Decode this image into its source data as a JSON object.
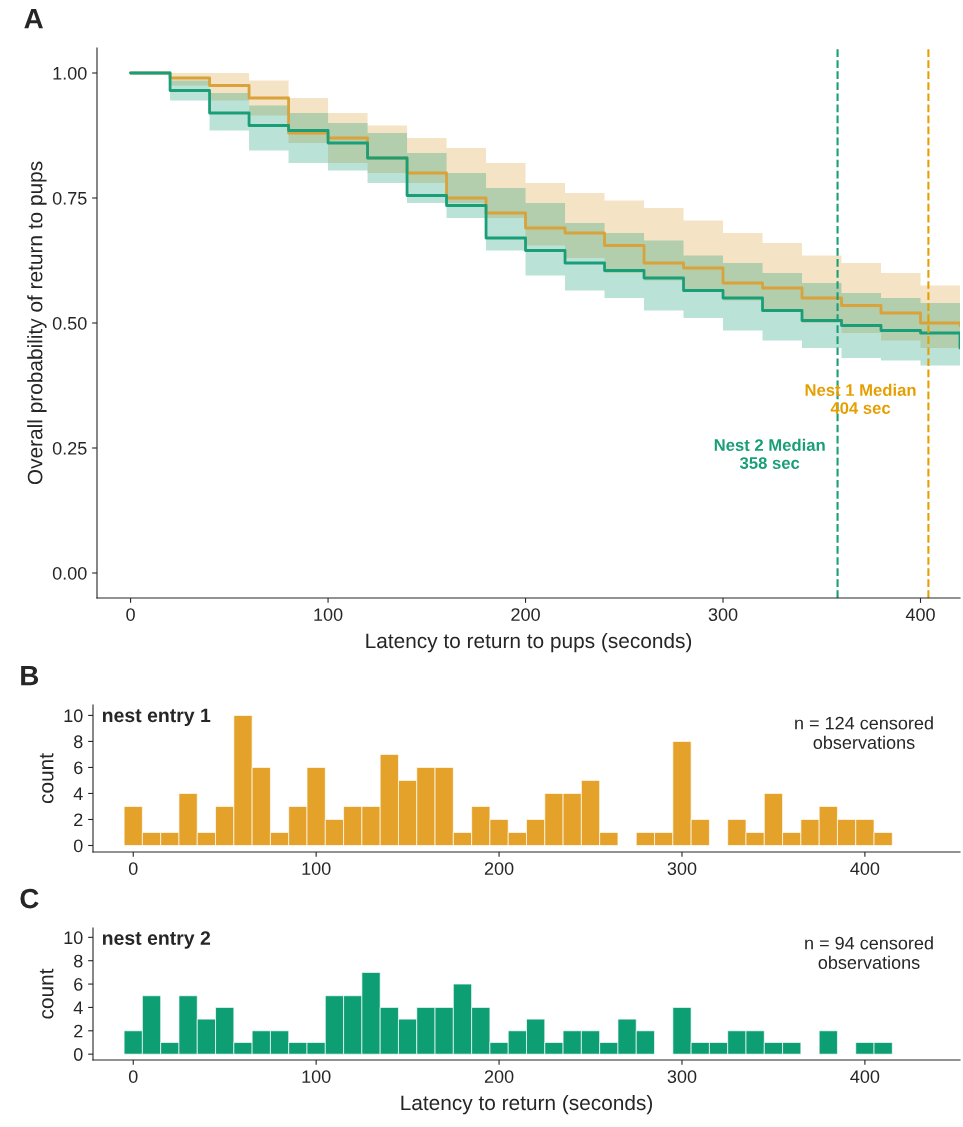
{
  "chart_data": [
    {
      "type": "step",
      "xlabel": "Latency to return to pups (seconds)",
      "ylabel": "Overall probability of return to pups",
      "xlim": [
        -17,
        420
      ],
      "ylim": [
        -0.05,
        1.05
      ],
      "xticks": [
        0,
        100,
        200,
        300,
        400
      ],
      "yticks": [
        {
          "value": 0,
          "label": "0.00"
        },
        {
          "value": 0.25,
          "label": "0.25"
        },
        {
          "value": 0.5,
          "label": "0.50"
        },
        {
          "value": 0.75,
          "label": "0.75"
        },
        {
          "value": 1,
          "label": "1.00"
        }
      ],
      "grid": false,
      "legend": false,
      "series": [
        {
          "color": "#d9a23a",
          "x": [
            0,
            20,
            40,
            60,
            80,
            100,
            120,
            140,
            160,
            180,
            200,
            220,
            240,
            260,
            280,
            300,
            320,
            340,
            360,
            380,
            400,
            420
          ],
          "values": [
            1.0,
            0.99,
            0.975,
            0.95,
            0.88,
            0.87,
            0.83,
            0.8,
            0.75,
            0.72,
            0.69,
            0.68,
            0.655,
            0.62,
            0.61,
            0.58,
            0.57,
            0.55,
            0.535,
            0.52,
            0.5,
            0.495
          ],
          "lower": [
            1.0,
            0.975,
            0.945,
            0.915,
            0.86,
            0.82,
            0.8,
            0.78,
            0.74,
            0.71,
            0.655,
            0.63,
            0.6,
            0.585,
            0.565,
            0.545,
            0.525,
            0.5,
            0.48,
            0.465,
            0.45,
            0.44
          ],
          "upper": [
            1.0,
            1.0,
            1.0,
            0.985,
            0.95,
            0.92,
            0.895,
            0.87,
            0.85,
            0.82,
            0.78,
            0.76,
            0.745,
            0.73,
            0.705,
            0.68,
            0.66,
            0.635,
            0.62,
            0.6,
            0.575,
            0.565
          ]
        },
        {
          "color": "#1a9e78",
          "x": [
            0,
            20,
            40,
            60,
            80,
            100,
            120,
            140,
            160,
            180,
            200,
            220,
            240,
            260,
            280,
            300,
            320,
            340,
            360,
            380,
            400,
            420
          ],
          "values": [
            1.0,
            0.965,
            0.92,
            0.895,
            0.885,
            0.86,
            0.83,
            0.755,
            0.735,
            0.67,
            0.645,
            0.62,
            0.605,
            0.59,
            0.565,
            0.55,
            0.525,
            0.505,
            0.495,
            0.485,
            0.48,
            0.45
          ],
          "lower": [
            1.0,
            0.945,
            0.885,
            0.845,
            0.82,
            0.805,
            0.78,
            0.74,
            0.71,
            0.645,
            0.595,
            0.565,
            0.55,
            0.525,
            0.51,
            0.485,
            0.465,
            0.45,
            0.43,
            0.425,
            0.415,
            0.41
          ],
          "upper": [
            1.0,
            0.985,
            0.96,
            0.935,
            0.92,
            0.9,
            0.88,
            0.84,
            0.8,
            0.77,
            0.74,
            0.7,
            0.68,
            0.665,
            0.635,
            0.62,
            0.6,
            0.58,
            0.56,
            0.55,
            0.54,
            0.53
          ]
        }
      ],
      "ref_lines": [
        {
          "axis": "x",
          "value": 358,
          "label": "Nest 2 Median\n358 sec",
          "color": "#1a9e78",
          "line_style": "dashed"
        },
        {
          "axis": "x",
          "value": 404,
          "label": "Nest 1 Median\n404 sec",
          "color": "#e69f00",
          "line_style": "dashed"
        }
      ],
      "annotations": [
        "A"
      ]
    },
    {
      "type": "histogram",
      "title": "nest entry 1",
      "ylabel": "count",
      "xlim": [
        -22,
        452
      ],
      "ylim": [
        -0.5,
        10.8
      ],
      "xticks": [
        0,
        100,
        200,
        300,
        400
      ],
      "yticks": [
        0,
        2,
        4,
        6,
        8,
        10
      ],
      "grid": false,
      "color": "#e5a22b",
      "bins": [
        -5,
        5,
        15,
        25,
        35,
        45,
        55,
        65,
        75,
        85,
        95,
        105,
        115,
        125,
        135,
        145,
        155,
        165,
        175,
        185,
        195,
        205,
        215,
        225,
        235,
        245,
        255,
        265,
        275,
        285,
        295,
        305,
        315,
        325,
        335,
        345,
        355,
        365,
        375,
        385,
        395,
        405,
        415
      ],
      "values": [
        3,
        1,
        1,
        4,
        1,
        3,
        10,
        6,
        1,
        3,
        6,
        2,
        3,
        3,
        7,
        5,
        6,
        6,
        1,
        3,
        2,
        1,
        2,
        4,
        4,
        5,
        1,
        0,
        1,
        1,
        8,
        2,
        0,
        2,
        1,
        4,
        1,
        2,
        3,
        2,
        2,
        1
      ],
      "annotations": [
        "B",
        "n = 124 censored\nobservations"
      ]
    },
    {
      "type": "histogram",
      "title": "nest entry 2",
      "ylabel": "count",
      "xlabel": "Latency to return (seconds)",
      "xlim": [
        -22,
        452
      ],
      "ylim": [
        -0.5,
        10.8
      ],
      "xticks": [
        0,
        100,
        200,
        300,
        400
      ],
      "yticks": [
        0,
        2,
        4,
        6,
        8,
        10
      ],
      "grid": false,
      "color": "#0e9e74",
      "bins": [
        -5,
        5,
        15,
        25,
        35,
        45,
        55,
        65,
        75,
        85,
        95,
        105,
        115,
        125,
        135,
        145,
        155,
        165,
        175,
        185,
        195,
        205,
        215,
        225,
        235,
        245,
        255,
        265,
        275,
        285,
        295,
        305,
        315,
        325,
        335,
        345,
        355,
        365,
        375,
        385,
        395,
        405,
        415
      ],
      "values": [
        2,
        5,
        1,
        5,
        3,
        4,
        1,
        2,
        2,
        1,
        1,
        5,
        5,
        7,
        4,
        3,
        4,
        4,
        6,
        4,
        1,
        2,
        3,
        1,
        2,
        2,
        1,
        3,
        2,
        0,
        4,
        1,
        1,
        2,
        2,
        1,
        1,
        0,
        2,
        0,
        1,
        1
      ],
      "annotations": [
        "C",
        "n = 94 censored\nobservations"
      ]
    }
  ]
}
